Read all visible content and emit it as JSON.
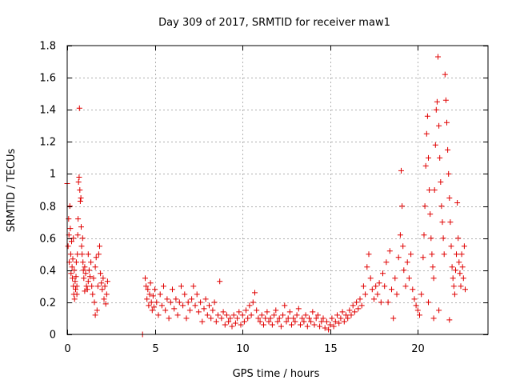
{
  "chart_data": {
    "type": "scatter",
    "title": "Day 309 of 2017, SRMTID for receiver maw1",
    "xlabel": "GPS time / hours",
    "ylabel": "SRMTID / TECUs",
    "xlim": [
      0,
      24
    ],
    "ylim": [
      0,
      1.8
    ],
    "xticks": [
      0,
      5,
      10,
      15,
      20
    ],
    "xtick_labels": [
      "0",
      "5",
      "10",
      "15",
      "20"
    ],
    "yticks": [
      0,
      0.2,
      0.4,
      0.6,
      0.8,
      1.0,
      1.2,
      1.4,
      1.6,
      1.8
    ],
    "ytick_labels": [
      "0",
      "0.2",
      "0.4",
      "0.6",
      "0.8",
      "1",
      "1.2",
      "1.4",
      "1.6",
      "1.8"
    ],
    "grid": true,
    "marker": "+",
    "color": "#e00000",
    "series": [
      {
        "name": "maw1",
        "points": [
          [
            0.0,
            0.94
          ],
          [
            0.05,
            0.55
          ],
          [
            0.08,
            0.72
          ],
          [
            0.1,
            0.62
          ],
          [
            0.12,
            0.45
          ],
          [
            0.15,
            0.8
          ],
          [
            0.18,
            0.66
          ],
          [
            0.2,
            0.5
          ],
          [
            0.22,
            0.38
          ],
          [
            0.25,
            0.58
          ],
          [
            0.28,
            0.42
          ],
          [
            0.3,
            0.35
          ],
          [
            0.32,
            0.47
          ],
          [
            0.35,
            0.3
          ],
          [
            0.38,
            0.25
          ],
          [
            0.4,
            0.4
          ],
          [
            0.42,
            0.22
          ],
          [
            0.45,
            0.33
          ],
          [
            0.48,
            0.28
          ],
          [
            0.5,
            0.36
          ],
          [
            0.52,
            0.45
          ],
          [
            0.55,
            0.3
          ],
          [
            0.58,
            0.5
          ],
          [
            0.6,
            0.62
          ],
          [
            0.62,
            0.72
          ],
          [
            0.65,
            0.95
          ],
          [
            0.68,
            0.98
          ],
          [
            0.7,
            1.41
          ],
          [
            0.72,
            0.9
          ],
          [
            0.75,
            0.83
          ],
          [
            0.78,
            0.85
          ],
          [
            0.8,
            0.67
          ],
          [
            0.82,
            0.55
          ],
          [
            0.85,
            0.5
          ],
          [
            0.88,
            0.6
          ],
          [
            0.9,
            0.45
          ],
          [
            0.92,
            0.4
          ],
          [
            0.95,
            0.35
          ],
          [
            1.0,
            0.42
          ],
          [
            1.05,
            0.38
          ],
          [
            1.1,
            0.3
          ],
          [
            1.15,
            0.28
          ],
          [
            1.2,
            0.33
          ],
          [
            1.25,
            0.4
          ],
          [
            1.3,
            0.36
          ],
          [
            1.35,
            0.45
          ],
          [
            1.4,
            0.3
          ],
          [
            1.45,
            0.25
          ],
          [
            1.5,
            0.35
          ],
          [
            1.55,
            0.2
          ],
          [
            1.6,
            0.42
          ],
          [
            1.65,
            0.48
          ],
          [
            1.7,
            0.15
          ],
          [
            1.75,
            0.3
          ],
          [
            1.8,
            0.5
          ],
          [
            1.85,
            0.55
          ],
          [
            1.9,
            0.38
          ],
          [
            1.95,
            0.32
          ],
          [
            2.0,
            0.28
          ],
          [
            2.05,
            0.35
          ],
          [
            2.1,
            0.22
          ],
          [
            2.15,
            0.3
          ],
          [
            2.2,
            0.19
          ],
          [
            2.25,
            0.25
          ],
          [
            2.3,
            0.33
          ],
          [
            0.35,
            0.6
          ],
          [
            0.55,
            0.25
          ],
          [
            1.2,
            0.5
          ],
          [
            1.0,
            0.27
          ],
          [
            1.6,
            0.12
          ],
          [
            4.3,
            0.0
          ],
          [
            4.45,
            0.35
          ],
          [
            4.5,
            0.3
          ],
          [
            4.55,
            0.22
          ],
          [
            4.6,
            0.28
          ],
          [
            4.65,
            0.18
          ],
          [
            4.7,
            0.25
          ],
          [
            4.75,
            0.32
          ],
          [
            4.8,
            0.2
          ],
          [
            4.85,
            0.15
          ],
          [
            4.9,
            0.24
          ],
          [
            4.95,
            0.17
          ],
          [
            5.0,
            0.28
          ],
          [
            5.1,
            0.2
          ],
          [
            5.2,
            0.12
          ],
          [
            5.3,
            0.25
          ],
          [
            5.4,
            0.18
          ],
          [
            5.5,
            0.3
          ],
          [
            5.6,
            0.15
          ],
          [
            5.7,
            0.22
          ],
          [
            5.8,
            0.1
          ],
          [
            5.9,
            0.2
          ],
          [
            6.0,
            0.28
          ],
          [
            6.1,
            0.16
          ],
          [
            6.2,
            0.22
          ],
          [
            6.3,
            0.12
          ],
          [
            6.4,
            0.2
          ],
          [
            6.5,
            0.3
          ],
          [
            6.6,
            0.18
          ],
          [
            6.7,
            0.25
          ],
          [
            6.8,
            0.1
          ],
          [
            6.9,
            0.2
          ],
          [
            7.0,
            0.15
          ],
          [
            7.1,
            0.22
          ],
          [
            7.2,
            0.3
          ],
          [
            7.3,
            0.18
          ],
          [
            7.4,
            0.25
          ],
          [
            7.5,
            0.14
          ],
          [
            7.6,
            0.2
          ],
          [
            7.7,
            0.08
          ],
          [
            7.8,
            0.16
          ],
          [
            7.9,
            0.22
          ],
          [
            8.0,
            0.12
          ],
          [
            8.1,
            0.18
          ],
          [
            8.2,
            0.1
          ],
          [
            8.3,
            0.15
          ],
          [
            8.4,
            0.2
          ],
          [
            8.5,
            0.08
          ],
          [
            8.6,
            0.12
          ],
          [
            8.7,
            0.33
          ],
          [
            8.8,
            0.1
          ],
          [
            8.9,
            0.14
          ],
          [
            9.0,
            0.06
          ],
          [
            9.1,
            0.12
          ],
          [
            9.2,
            0.08
          ],
          [
            9.3,
            0.1
          ],
          [
            9.4,
            0.05
          ],
          [
            9.5,
            0.12
          ],
          [
            9.6,
            0.07
          ],
          [
            9.7,
            0.1
          ],
          [
            9.8,
            0.14
          ],
          [
            9.9,
            0.06
          ],
          [
            10.0,
            0.12
          ],
          [
            10.1,
            0.08
          ],
          [
            10.2,
            0.15
          ],
          [
            10.3,
            0.1
          ],
          [
            10.4,
            0.18
          ],
          [
            10.5,
            0.12
          ],
          [
            10.6,
            0.2
          ],
          [
            10.7,
            0.26
          ],
          [
            10.8,
            0.15
          ],
          [
            10.9,
            0.1
          ],
          [
            11.0,
            0.08
          ],
          [
            11.1,
            0.12
          ],
          [
            11.2,
            0.06
          ],
          [
            11.3,
            0.1
          ],
          [
            11.4,
            0.14
          ],
          [
            11.5,
            0.08
          ],
          [
            11.6,
            0.1
          ],
          [
            11.7,
            0.06
          ],
          [
            11.8,
            0.12
          ],
          [
            11.9,
            0.15
          ],
          [
            12.0,
            0.08
          ],
          [
            12.1,
            0.1
          ],
          [
            12.2,
            0.05
          ],
          [
            12.3,
            0.12
          ],
          [
            12.4,
            0.18
          ],
          [
            12.5,
            0.08
          ],
          [
            12.6,
            0.1
          ],
          [
            12.7,
            0.14
          ],
          [
            12.8,
            0.06
          ],
          [
            12.9,
            0.1
          ],
          [
            13.0,
            0.08
          ],
          [
            13.1,
            0.12
          ],
          [
            13.2,
            0.16
          ],
          [
            13.3,
            0.06
          ],
          [
            13.4,
            0.1
          ],
          [
            13.5,
            0.08
          ],
          [
            13.6,
            0.12
          ],
          [
            13.7,
            0.05
          ],
          [
            13.8,
            0.1
          ],
          [
            13.9,
            0.08
          ],
          [
            14.0,
            0.14
          ],
          [
            14.1,
            0.06
          ],
          [
            14.2,
            0.1
          ],
          [
            14.3,
            0.12
          ],
          [
            14.4,
            0.05
          ],
          [
            14.5,
            0.08
          ],
          [
            14.6,
            0.1
          ],
          [
            14.7,
            0.04
          ],
          [
            14.8,
            0.08
          ],
          [
            14.9,
            0.03
          ],
          [
            15.0,
            0.06
          ],
          [
            15.1,
            0.1
          ],
          [
            15.2,
            0.05
          ],
          [
            15.3,
            0.08
          ],
          [
            15.4,
            0.12
          ],
          [
            15.5,
            0.07
          ],
          [
            15.6,
            0.1
          ],
          [
            15.7,
            0.14
          ],
          [
            15.8,
            0.08
          ],
          [
            15.9,
            0.12
          ],
          [
            16.0,
            0.1
          ],
          [
            16.1,
            0.15
          ],
          [
            16.2,
            0.12
          ],
          [
            16.3,
            0.18
          ],
          [
            16.4,
            0.14
          ],
          [
            16.5,
            0.2
          ],
          [
            16.6,
            0.16
          ],
          [
            16.7,
            0.22
          ],
          [
            16.8,
            0.18
          ],
          [
            16.9,
            0.3
          ],
          [
            17.0,
            0.25
          ],
          [
            17.1,
            0.42
          ],
          [
            17.2,
            0.5
          ],
          [
            17.3,
            0.35
          ],
          [
            17.4,
            0.28
          ],
          [
            17.5,
            0.22
          ],
          [
            17.6,
            0.3
          ],
          [
            17.7,
            0.25
          ],
          [
            17.8,
            0.32
          ],
          [
            17.9,
            0.2
          ],
          [
            18.0,
            0.38
          ],
          [
            18.1,
            0.3
          ],
          [
            18.2,
            0.45
          ],
          [
            18.3,
            0.2
          ],
          [
            18.4,
            0.52
          ],
          [
            18.5,
            0.28
          ],
          [
            18.6,
            0.1
          ],
          [
            18.7,
            0.35
          ],
          [
            18.8,
            0.25
          ],
          [
            18.9,
            0.48
          ],
          [
            19.0,
            0.62
          ],
          [
            19.05,
            1.02
          ],
          [
            19.1,
            0.8
          ],
          [
            19.15,
            0.55
          ],
          [
            19.2,
            0.4
          ],
          [
            19.3,
            0.3
          ],
          [
            19.4,
            0.45
          ],
          [
            19.5,
            0.35
          ],
          [
            19.6,
            0.5
          ],
          [
            19.7,
            0.28
          ],
          [
            19.8,
            0.22
          ],
          [
            19.9,
            0.18
          ],
          [
            20.0,
            0.15
          ],
          [
            20.1,
            0.12
          ],
          [
            20.2,
            0.25
          ],
          [
            20.3,
            0.48
          ],
          [
            20.35,
            0.62
          ],
          [
            20.4,
            0.8
          ],
          [
            20.45,
            1.05
          ],
          [
            20.5,
            1.25
          ],
          [
            20.55,
            1.36
          ],
          [
            20.6,
            1.1
          ],
          [
            20.65,
            0.9
          ],
          [
            20.7,
            0.75
          ],
          [
            20.75,
            0.6
          ],
          [
            20.8,
            0.5
          ],
          [
            20.85,
            0.42
          ],
          [
            20.9,
            0.35
          ],
          [
            20.95,
            0.9
          ],
          [
            21.0,
            1.18
          ],
          [
            21.05,
            1.4
          ],
          [
            21.1,
            1.45
          ],
          [
            21.15,
            1.73
          ],
          [
            21.2,
            1.3
          ],
          [
            21.25,
            1.1
          ],
          [
            21.3,
            0.95
          ],
          [
            21.35,
            0.8
          ],
          [
            21.4,
            0.7
          ],
          [
            21.45,
            0.6
          ],
          [
            21.5,
            0.5
          ],
          [
            21.55,
            1.62
          ],
          [
            21.6,
            1.46
          ],
          [
            21.65,
            1.32
          ],
          [
            21.7,
            1.15
          ],
          [
            21.75,
            1.0
          ],
          [
            21.8,
            0.85
          ],
          [
            21.85,
            0.7
          ],
          [
            21.9,
            0.55
          ],
          [
            21.95,
            0.42
          ],
          [
            22.0,
            0.35
          ],
          [
            22.05,
            0.3
          ],
          [
            22.1,
            0.25
          ],
          [
            22.15,
            0.4
          ],
          [
            22.2,
            0.5
          ],
          [
            22.25,
            0.82
          ],
          [
            22.3,
            0.6
          ],
          [
            22.35,
            0.45
          ],
          [
            22.4,
            0.38
          ],
          [
            22.45,
            0.3
          ],
          [
            22.5,
            0.5
          ],
          [
            22.55,
            0.42
          ],
          [
            22.6,
            0.35
          ],
          [
            22.65,
            0.55
          ],
          [
            22.7,
            0.28
          ],
          [
            20.6,
            0.2
          ],
          [
            20.9,
            0.1
          ],
          [
            21.2,
            0.15
          ],
          [
            21.8,
            0.09
          ]
        ]
      }
    ]
  }
}
